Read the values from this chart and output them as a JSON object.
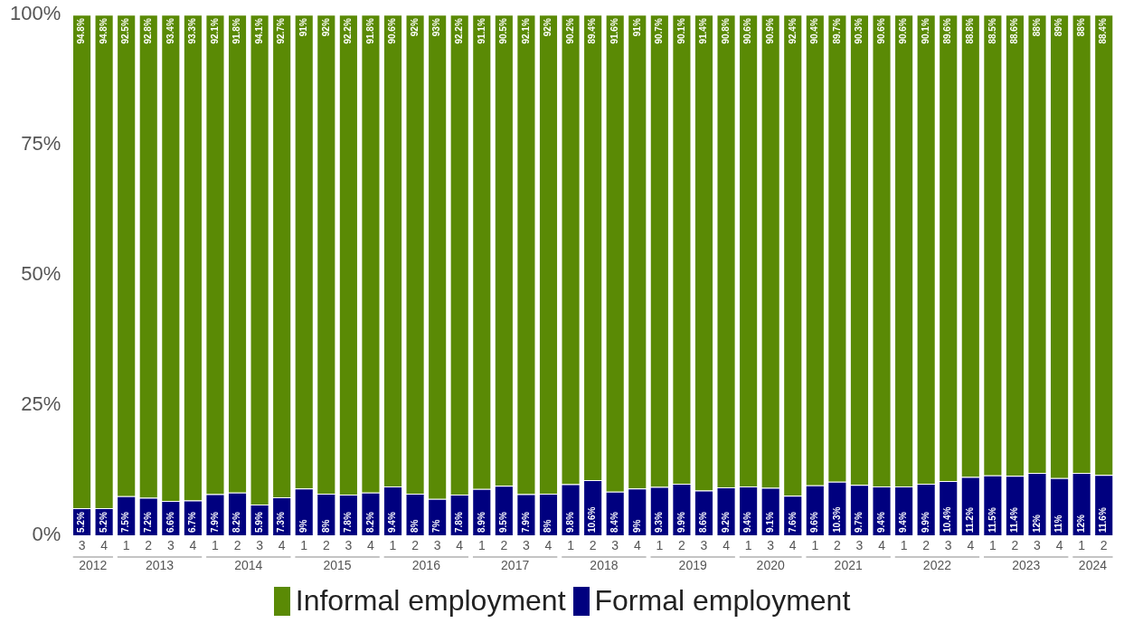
{
  "chart_data": {
    "type": "bar",
    "stacked": true,
    "legend": "bottom",
    "grid": false,
    "categories": [
      "3",
      "4",
      "1",
      "2",
      "3",
      "4",
      "1",
      "2",
      "3",
      "4",
      "1",
      "2",
      "3",
      "4",
      "1",
      "2",
      "3",
      "4",
      "1",
      "2",
      "3",
      "4",
      "1",
      "2",
      "3",
      "4",
      "1",
      "2",
      "3",
      "4",
      "1",
      "3",
      "4",
      "1",
      "2",
      "3",
      "4",
      "1",
      "2",
      "3",
      "4",
      "1",
      "2",
      "3",
      "4",
      "1",
      "2"
    ],
    "annotations": [
      "2012",
      "2013",
      "2014",
      "2015",
      "2016",
      "2017",
      "2018",
      "2019",
      "2020",
      "2021",
      "2022",
      "2023",
      "2024"
    ],
    "ylim": [
      0,
      100
    ],
    "yticks": [
      {
        "value": 0,
        "label": "0%"
      },
      {
        "value": 25,
        "label": "25%"
      },
      {
        "value": 50,
        "label": "50%"
      },
      {
        "value": 75,
        "label": "75%"
      },
      {
        "value": 100,
        "label": "100%"
      }
    ],
    "series": [
      {
        "name": "Formal employment",
        "color": "#00007f",
        "values": [
          5.2,
          5.2,
          7.5,
          7.2,
          6.6,
          6.7,
          7.9,
          8.2,
          5.9,
          7.3,
          9,
          8,
          7.8,
          8.2,
          9.4,
          8,
          7,
          7.8,
          8.9,
          9.5,
          7.9,
          8,
          9.8,
          10.6,
          8.4,
          9,
          9.3,
          9.9,
          8.6,
          9.2,
          9.4,
          9.1,
          7.6,
          9.6,
          10.3,
          9.7,
          9.4,
          9.4,
          9.9,
          10.4,
          11.2,
          11.5,
          11.4,
          12,
          11,
          12,
          11.6
        ],
        "value_labels": [
          "5.2%",
          "5.2%",
          "7.5%",
          "7.2%",
          "6.6%",
          "6.7%",
          "7.9%",
          "8.2%",
          "5.9%",
          "7.3%",
          "9%",
          "8%",
          "7.8%",
          "8.2%",
          "9.4%",
          "8%",
          "7%",
          "7.8%",
          "8.9%",
          "9.5%",
          "7.9%",
          "8%",
          "9.8%",
          "10.6%",
          "8.4%",
          "9%",
          "9.3%",
          "9.9%",
          "8.6%",
          "9.2%",
          "9.4%",
          "9.1%",
          "7.6%",
          "9.6%",
          "10.3%",
          "9.7%",
          "9.4%",
          "9.4%",
          "9.9%",
          "10.4%",
          "11.2%",
          "11.5%",
          "11.4%",
          "12%",
          "11%",
          "12%",
          "11.6%"
        ]
      },
      {
        "name": "Informal employment",
        "color": "#5a8a05",
        "values": [
          94.8,
          94.8,
          92.5,
          92.8,
          93.4,
          93.3,
          92.1,
          91.8,
          94.1,
          92.7,
          91,
          92,
          92.2,
          91.8,
          90.6,
          92,
          93,
          92.2,
          91.1,
          90.5,
          92.1,
          92,
          90.2,
          89.4,
          91.6,
          91,
          90.7,
          90.1,
          91.4,
          90.8,
          90.6,
          90.9,
          92.4,
          90.4,
          89.7,
          90.3,
          90.6,
          90.6,
          90.1,
          89.6,
          88.8,
          88.5,
          88.6,
          88,
          89,
          88,
          88.4
        ],
        "value_labels": [
          "94.8%",
          "94.8%",
          "92.5%",
          "92.8%",
          "93.4%",
          "93.3%",
          "92.1%",
          "91.8%",
          "94.1%",
          "92.7%",
          "91%",
          "92%",
          "92.2%",
          "91.8%",
          "90.6%",
          "92%",
          "93%",
          "92.2%",
          "91.1%",
          "90.5%",
          "92.1%",
          "92%",
          "90.2%",
          "89.4%",
          "91.6%",
          "91%",
          "90.7%",
          "90.1%",
          "91.4%",
          "90.8%",
          "90.6%",
          "90.9%",
          "92.4%",
          "90.4%",
          "89.7%",
          "90.3%",
          "90.6%",
          "90.6%",
          "90.1%",
          "89.6%",
          "88.8%",
          "88.5%",
          "88.6%",
          "88%",
          "89%",
          "88%",
          "88.4%"
        ]
      }
    ]
  }
}
